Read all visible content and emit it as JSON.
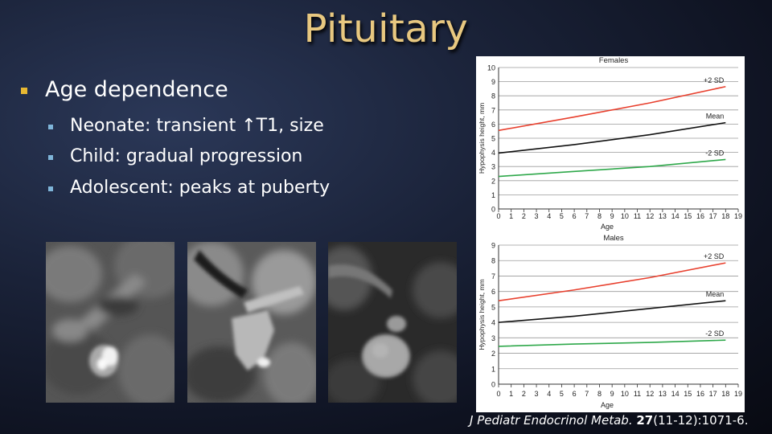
{
  "slide": {
    "title": "Pituitary",
    "bullet_main": "Age dependence",
    "sub_bullets": [
      "Neonate: transient ↑T1, size",
      "Child: gradual progression",
      "Adolescent: peaks at puberty"
    ],
    "citation": {
      "journal": "J Pediatr Endocrinol Metab.",
      "volume": "27",
      "rest": "(11-12):1071-6."
    },
    "colors": {
      "title": "#e8c880",
      "bullet_main": "#e8b832",
      "bullet_sub": "#7fb5d9"
    }
  },
  "chart_data": [
    {
      "type": "line",
      "title": "Females",
      "xlabel": "Age",
      "ylabel": "Hypophysis height, mm",
      "x": [
        0,
        18
      ],
      "xlim": [
        0,
        19
      ],
      "ylim": [
        0,
        10
      ],
      "xticks": [
        0,
        1,
        2,
        3,
        4,
        5,
        6,
        7,
        8,
        9,
        10,
        11,
        12,
        13,
        14,
        15,
        16,
        17,
        18,
        19
      ],
      "yticks": [
        0,
        1,
        2,
        3,
        4,
        5,
        6,
        7,
        8,
        9,
        10
      ],
      "grid": "horizontal",
      "series": [
        {
          "name": "+2 SD",
          "color": "#e8402e",
          "x": [
            0,
            6,
            12,
            18
          ],
          "values": [
            5.55,
            6.5,
            7.5,
            8.65
          ]
        },
        {
          "name": "Mean",
          "color": "#111111",
          "x": [
            0,
            6,
            12,
            18
          ],
          "values": [
            3.95,
            4.55,
            5.25,
            6.1
          ]
        },
        {
          "name": "-2 SD",
          "color": "#2ea84a",
          "x": [
            0,
            6,
            12,
            18
          ],
          "values": [
            2.3,
            2.65,
            3.0,
            3.5
          ]
        }
      ]
    },
    {
      "type": "line",
      "title": "Males",
      "xlabel": "Age",
      "ylabel": "Hypophysis height, mm",
      "xlim": [
        0,
        19
      ],
      "ylim": [
        0,
        9
      ],
      "xticks": [
        0,
        1,
        2,
        3,
        4,
        5,
        6,
        7,
        8,
        9,
        10,
        11,
        12,
        13,
        14,
        15,
        16,
        17,
        18,
        19
      ],
      "yticks": [
        0,
        1,
        2,
        3,
        4,
        5,
        6,
        7,
        8,
        9
      ],
      "grid": "horizontal",
      "series": [
        {
          "name": "+2 SD",
          "color": "#e8402e",
          "x": [
            0,
            6,
            12,
            18
          ],
          "values": [
            5.4,
            6.1,
            6.9,
            7.85
          ]
        },
        {
          "name": "Mean",
          "color": "#111111",
          "x": [
            0,
            6,
            12,
            18
          ],
          "values": [
            4.0,
            4.4,
            4.9,
            5.4
          ]
        },
        {
          "name": "-2 SD",
          "color": "#2ea84a",
          "x": [
            0,
            6,
            12,
            18
          ],
          "values": [
            2.45,
            2.6,
            2.7,
            2.85
          ]
        }
      ]
    }
  ]
}
